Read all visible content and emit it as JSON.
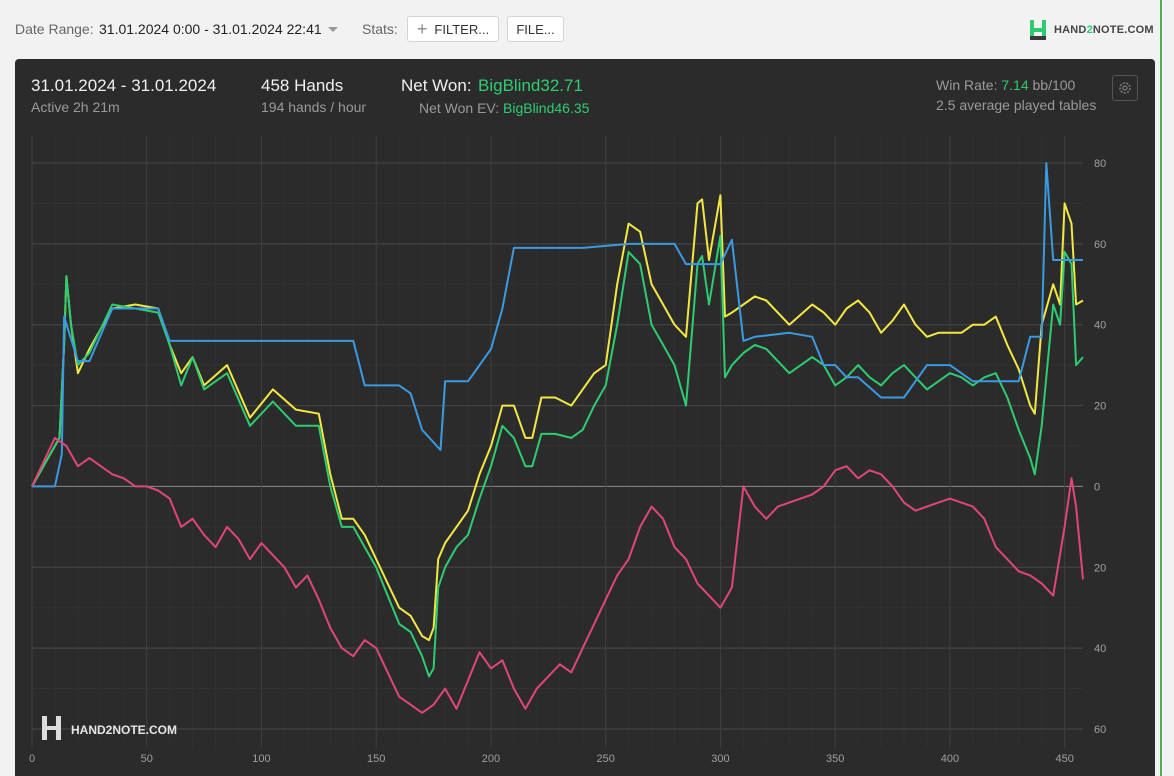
{
  "toolbar": {
    "date_range_label": "Date Range:",
    "date_range_value": "31.01.2024 0:00 - 31.01.2024 22:41",
    "stats_label": "Stats:",
    "filter_button": "FILTER...",
    "file_button": "FILE..."
  },
  "brand": {
    "name_prefix": "HAND",
    "name_accent": "2",
    "name_suffix": "NOTE.COM",
    "accent_color": "#2ecc71"
  },
  "summary": {
    "date_span": "31.01.2024 - 31.01.2024",
    "active_time": "Active 2h 21m",
    "hands": "458 Hands",
    "hands_per_hour": "194 hands / hour",
    "net_won_label": "Net Won:",
    "net_won_value": "BigBlind32.71",
    "net_won_ev_label": "Net Won  EV:",
    "net_won_ev_value": "BigBlind46.35",
    "win_rate_label": "Win Rate:",
    "win_rate_value": "7.14",
    "win_rate_unit": "bb/100",
    "tables": "2.5 average played tables"
  },
  "chart_data": {
    "type": "line",
    "xlim": [
      0,
      458
    ],
    "ylim": [
      -60,
      80
    ],
    "x_ticks": [
      0,
      50,
      100,
      150,
      200,
      250,
      300,
      350,
      400,
      450
    ],
    "y_ticks": [
      80,
      60,
      40,
      20,
      0,
      -20,
      -40,
      -60
    ],
    "y_tick_labels": [
      "80",
      "60",
      "40",
      "20",
      "0",
      "20",
      "40",
      "60"
    ],
    "grid": true,
    "watermark": "HAND2NOTE.COM",
    "series": [
      {
        "color": "#f2e844",
        "x": [
          0,
          12,
          14,
          15,
          17,
          20,
          25,
          35,
          45,
          55,
          60,
          65,
          70,
          75,
          85,
          95,
          105,
          115,
          125,
          130,
          135,
          140,
          145,
          150,
          155,
          160,
          165,
          170,
          173,
          175,
          177,
          180,
          185,
          190,
          195,
          200,
          205,
          210,
          215,
          218,
          222,
          228,
          235,
          240,
          245,
          250,
          255,
          260,
          265,
          270,
          275,
          280,
          285,
          290,
          292,
          295,
          300,
          302,
          305,
          310,
          315,
          320,
          330,
          340,
          345,
          350,
          355,
          360,
          365,
          370,
          375,
          380,
          385,
          390,
          395,
          400,
          405,
          410,
          415,
          420,
          425,
          430,
          435,
          437,
          440,
          445,
          448,
          450,
          453,
          455,
          458
        ],
        "y": [
          0,
          12,
          35,
          52,
          40,
          28,
          34,
          44,
          45,
          44,
          35,
          28,
          32,
          25,
          30,
          17,
          24,
          19,
          18,
          3,
          -8,
          -8,
          -12,
          -18,
          -24,
          -30,
          -32,
          -37,
          -38,
          -35,
          -18,
          -14,
          -10,
          -6,
          3,
          10,
          20,
          20,
          12,
          12,
          22,
          22,
          20,
          24,
          28,
          30,
          50,
          65,
          63,
          50,
          45,
          40,
          37,
          70,
          71,
          56,
          72,
          42,
          43,
          45,
          47,
          46,
          40,
          45,
          43,
          40,
          44,
          46,
          43,
          38,
          41,
          45,
          40,
          37,
          38,
          38,
          38,
          40,
          40,
          42,
          35,
          29,
          20,
          18,
          40,
          50,
          45,
          70,
          65,
          45,
          46
        ]
      },
      {
        "color": "#2ecc71",
        "x": [
          0,
          12,
          14,
          15,
          17,
          20,
          25,
          35,
          45,
          55,
          60,
          65,
          70,
          75,
          85,
          95,
          105,
          115,
          125,
          130,
          135,
          140,
          145,
          150,
          155,
          160,
          165,
          170,
          173,
          175,
          177,
          180,
          185,
          190,
          195,
          200,
          205,
          210,
          215,
          218,
          222,
          228,
          235,
          240,
          245,
          250,
          255,
          260,
          265,
          270,
          275,
          280,
          285,
          290,
          292,
          295,
          300,
          302,
          305,
          310,
          315,
          320,
          330,
          340,
          345,
          350,
          355,
          360,
          365,
          370,
          375,
          380,
          385,
          390,
          395,
          400,
          405,
          410,
          415,
          420,
          425,
          430,
          435,
          437,
          440,
          445,
          448,
          450,
          453,
          455,
          458
        ],
        "y": [
          0,
          12,
          35,
          52,
          40,
          30,
          33,
          45,
          44,
          43,
          35,
          25,
          32,
          24,
          28,
          15,
          21,
          15,
          15,
          0,
          -10,
          -10,
          -15,
          -20,
          -27,
          -34,
          -36,
          -42,
          -47,
          -45,
          -25,
          -20,
          -15,
          -12,
          -3,
          5,
          15,
          12,
          5,
          5,
          13,
          13,
          12,
          14,
          20,
          25,
          40,
          58,
          55,
          40,
          35,
          30,
          20,
          55,
          57,
          45,
          62,
          27,
          30,
          33,
          35,
          34,
          28,
          32,
          30,
          25,
          27,
          30,
          27,
          25,
          28,
          30,
          27,
          24,
          26,
          28,
          27,
          25,
          27,
          28,
          22,
          14,
          7,
          3,
          15,
          45,
          40,
          58,
          55,
          30,
          32
        ]
      },
      {
        "color": "#3b9ae1",
        "x": [
          0,
          10,
          13,
          14,
          20,
          25,
          35,
          40,
          55,
          60,
          140,
          145,
          150,
          160,
          165,
          170,
          178,
          180,
          185,
          190,
          200,
          205,
          210,
          225,
          240,
          260,
          280,
          285,
          290,
          300,
          305,
          310,
          315,
          330,
          340,
          345,
          350,
          355,
          360,
          370,
          380,
          390,
          400,
          410,
          430,
          435,
          437,
          440,
          442,
          445,
          458
        ],
        "y": [
          0,
          0,
          8,
          42,
          31,
          31,
          44,
          44,
          44,
          36,
          36,
          25,
          25,
          25,
          23,
          14,
          9,
          26,
          26,
          26,
          34,
          44,
          59,
          59,
          59,
          60,
          60,
          55,
          55,
          55,
          61,
          36,
          37,
          38,
          37,
          30,
          30,
          27,
          27,
          22,
          22,
          30,
          30,
          26,
          26,
          37,
          37,
          37,
          80,
          56,
          56
        ]
      },
      {
        "color": "#e0457b",
        "x": [
          0,
          10,
          15,
          20,
          25,
          30,
          35,
          40,
          45,
          50,
          55,
          60,
          65,
          70,
          75,
          80,
          85,
          90,
          95,
          100,
          105,
          110,
          115,
          120,
          125,
          130,
          135,
          140,
          145,
          150,
          155,
          160,
          165,
          170,
          175,
          180,
          185,
          190,
          195,
          200,
          205,
          210,
          215,
          220,
          225,
          230,
          235,
          240,
          245,
          250,
          255,
          260,
          265,
          270,
          275,
          280,
          285,
          290,
          295,
          300,
          305,
          310,
          315,
          320,
          325,
          330,
          335,
          340,
          345,
          350,
          355,
          360,
          365,
          370,
          375,
          380,
          385,
          390,
          395,
          400,
          405,
          410,
          415,
          420,
          425,
          430,
          435,
          440,
          445,
          450,
          453,
          455,
          458
        ],
        "y": [
          0,
          12,
          10,
          5,
          7,
          5,
          3,
          2,
          0,
          0,
          -1,
          -3,
          -10,
          -8,
          -12,
          -15,
          -10,
          -13,
          -18,
          -14,
          -17,
          -20,
          -25,
          -22,
          -28,
          -35,
          -40,
          -42,
          -38,
          -40,
          -46,
          -52,
          -54,
          -56,
          -54,
          -50,
          -55,
          -48,
          -41,
          -45,
          -43,
          -50,
          -55,
          -50,
          -47,
          -44,
          -46,
          -40,
          -34,
          -28,
          -22,
          -18,
          -10,
          -5,
          -8,
          -15,
          -18,
          -24,
          -27,
          -30,
          -25,
          0,
          -5,
          -8,
          -5,
          -4,
          -3,
          -2,
          0,
          4,
          5,
          2,
          4,
          3,
          0,
          -4,
          -6,
          -5,
          -4,
          -3,
          -4,
          -5,
          -8,
          -15,
          -18,
          -21,
          -22,
          -24,
          -27,
          -10,
          2,
          -5,
          -23
        ]
      }
    ]
  }
}
